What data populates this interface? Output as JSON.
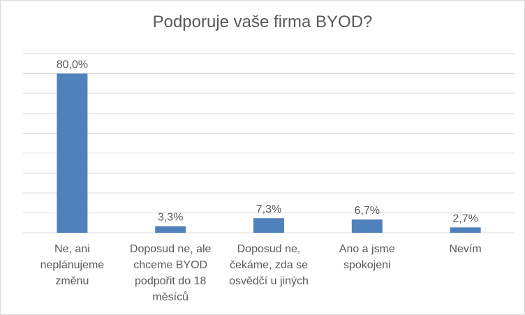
{
  "chart_data": {
    "type": "bar",
    "title": "Podporuje vaše firma BYOD?",
    "categories": [
      [
        "Ne, ani",
        "neplánujeme",
        "změnu"
      ],
      [
        "Doposud ne, ale",
        "chceme BYOD",
        "podpořit do 18",
        "měsíců"
      ],
      [
        "Doposud ne,",
        "čekáme, zda se",
        "osvědčí u jiných"
      ],
      [
        "Ano a jsme",
        "spokojeni"
      ],
      [
        "Nevím"
      ]
    ],
    "values": [
      80.0,
      3.3,
      7.3,
      6.7,
      2.7
    ],
    "data_labels": [
      "80,0%",
      "3,3%",
      "7,3%",
      "6,7%",
      "2,7%"
    ],
    "ylim": [
      0,
      90
    ],
    "grid": true,
    "legend": "none",
    "bar_color": "#4f81bd",
    "grid_color": "#d9d9d9",
    "text_color": "#595959"
  }
}
